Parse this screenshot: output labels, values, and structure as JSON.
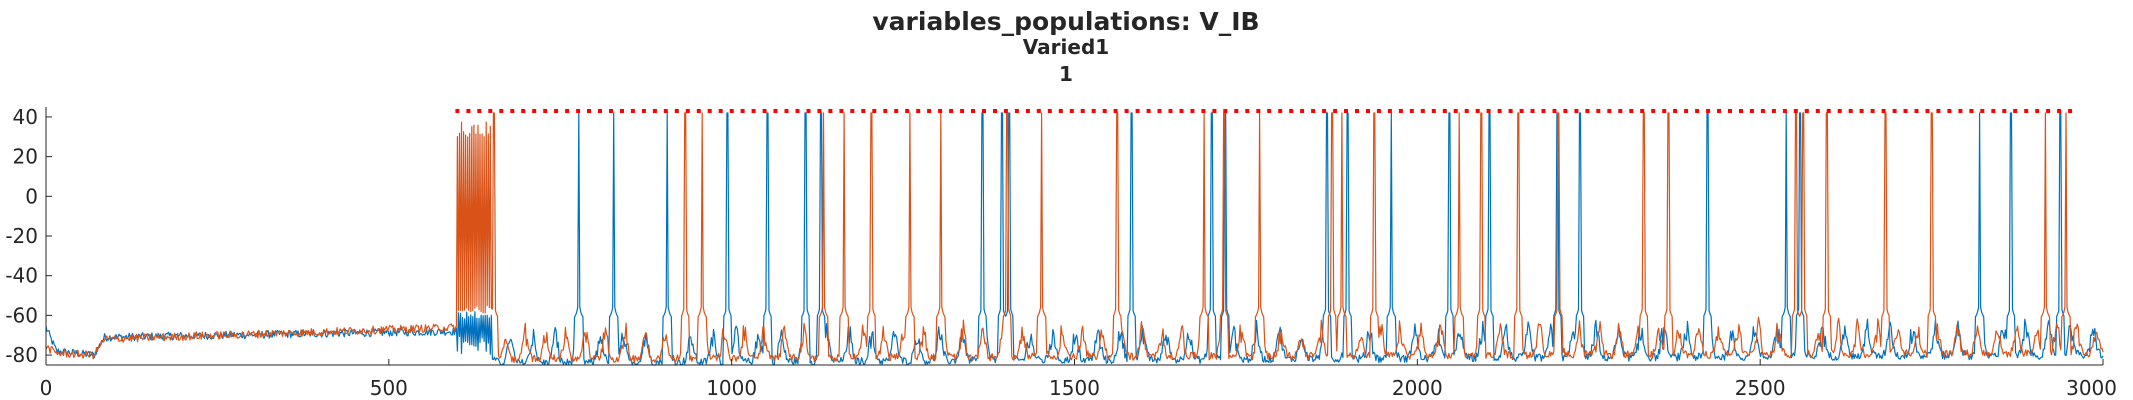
{
  "chart_data": {
    "type": "line",
    "title": "variables_populations: V_IB",
    "subtitle": "Varied1",
    "subtitle2": "1",
    "xlabel": "",
    "ylabel": "",
    "xlim": [
      0,
      3000
    ],
    "ylim": [
      -85,
      45
    ],
    "xticks": [
      0,
      500,
      1000,
      1500,
      2000,
      2500,
      3000
    ],
    "yticks": [
      -80,
      -60,
      -40,
      -20,
      0,
      20,
      40
    ],
    "grid": false,
    "legend": "none",
    "colors": {
      "series1": "#0072BD",
      "series2": "#D95319",
      "marker": "#FF0000",
      "axis": "#262626"
    },
    "series": [
      {
        "color": "#0072BD",
        "baseline": [
          [
            0,
            -66
          ],
          [
            15,
            -78
          ],
          [
            70,
            -80
          ],
          [
            85,
            -71
          ],
          [
            600,
            -68
          ],
          [
            660,
            -84
          ],
          [
            3000,
            -80
          ]
        ],
        "bursts": [
          [
            600,
            650,
            -70,
            -58
          ]
        ],
        "spikes": [
          777,
          828,
          906,
          994,
          1052,
          1108,
          1130,
          1366,
          1394,
          1405,
          1583,
          1700,
          1720,
          1868,
          1898,
          1962,
          2047,
          2105,
          2204,
          2237,
          2423,
          2538,
          2558,
          2820,
          2866,
          2938
        ]
      },
      {
        "color": "#D95319",
        "baseline": [
          [
            0,
            -76
          ],
          [
            15,
            -79
          ],
          [
            70,
            -80
          ],
          [
            85,
            -72
          ],
          [
            600,
            -66
          ],
          [
            660,
            -82
          ],
          [
            3000,
            -79
          ]
        ],
        "bursts": [
          [
            600,
            650,
            38,
            -55
          ]
        ],
        "spikes": [
          608,
          653,
          932,
          957,
          1134,
          1164,
          1204,
          1260,
          1305,
          1402,
          1452,
          1562,
          1689,
          1718,
          1770,
          1876,
          1890,
          1937,
          2061,
          2093,
          2147,
          2206,
          2330,
          2366,
          2552,
          2563,
          2597,
          2683,
          2750,
          2916,
          2946
        ]
      }
    ],
    "marker_line": {
      "y": 43,
      "x_start": 600,
      "x_end": 2960,
      "spacing": 16
    }
  }
}
